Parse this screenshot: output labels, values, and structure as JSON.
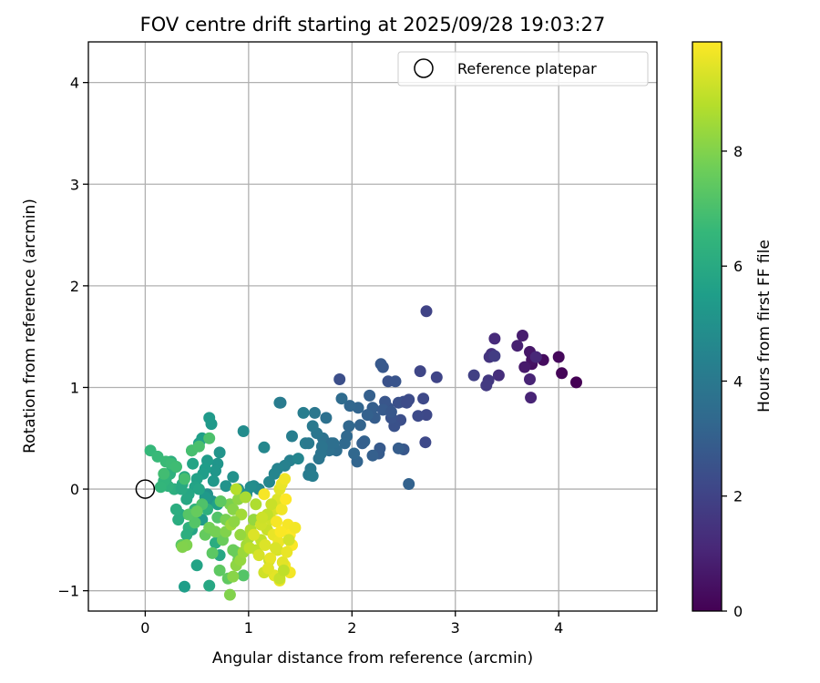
{
  "chart_data": {
    "type": "scatter",
    "title": "FOV centre drift starting at 2025/09/28 19:03:27",
    "xlabel": "Angular distance from reference (arcmin)",
    "ylabel": "Rotation from reference (arcmin)",
    "xlim": [
      -0.55,
      4.95
    ],
    "ylim": [
      -1.2,
      4.4
    ],
    "xticks": [
      0,
      1,
      2,
      3,
      4
    ],
    "yticks": [
      -1,
      0,
      1,
      2,
      3,
      4
    ],
    "grid": true,
    "legend": {
      "position": "top-right",
      "entries": [
        "Reference platepar"
      ]
    },
    "reference_point": {
      "x": 0,
      "y": 0
    },
    "colorbar": {
      "label": "Hours from first FF file",
      "range": [
        0,
        9.9
      ],
      "ticks": [
        0,
        2,
        4,
        6,
        8
      ],
      "colormap": "viridis",
      "colormap_stops": [
        "#440154",
        "#482878",
        "#3e4989",
        "#31688e",
        "#26828e",
        "#1f9e89",
        "#35b779",
        "#6ece58",
        "#b5de2b",
        "#fde725"
      ]
    },
    "series": [
      {
        "x": [
          4.17,
          4.03,
          4.0,
          3.85,
          3.74,
          3.74,
          3.72,
          3.67,
          3.65,
          3.6,
          3.72,
          3.78,
          3.38,
          3.42,
          3.35,
          3.33,
          3.32,
          3.3,
          3.38,
          3.18,
          3.73
        ],
        "y": [
          1.05,
          1.14,
          1.3,
          1.27,
          1.23,
          1.27,
          1.35,
          1.2,
          1.51,
          1.41,
          1.08,
          1.3,
          1.48,
          1.12,
          1.33,
          1.3,
          1.07,
          1.02,
          1.31,
          1.12,
          0.9
        ],
        "t": [
          0.0,
          0.1,
          0.2,
          0.3,
          0.4,
          0.5,
          0.6,
          0.7,
          0.8,
          0.9,
          1.0,
          1.1,
          1.2,
          1.3,
          1.4,
          1.5,
          1.6,
          1.7,
          1.8,
          1.9,
          1.0
        ]
      },
      {
        "x": [
          2.72,
          2.82,
          2.66,
          2.72,
          2.69,
          2.64,
          2.55,
          2.5,
          2.47,
          2.45,
          2.41,
          2.38,
          2.35,
          2.32,
          2.3,
          2.28,
          2.27,
          2.26,
          2.22,
          2.2,
          2.17,
          2.15,
          2.12,
          2.08,
          2.06,
          1.98,
          1.97,
          1.95,
          1.93,
          1.9,
          1.88,
          1.85,
          2.05,
          2.1,
          2.35,
          2.42,
          2.5,
          2.45,
          2.53,
          2.55,
          2.71,
          2.3,
          2.38,
          2.2,
          2.02
        ],
        "y": [
          1.75,
          1.1,
          1.16,
          0.73,
          0.89,
          0.72,
          0.88,
          0.86,
          0.68,
          0.85,
          0.62,
          0.7,
          0.8,
          0.86,
          1.2,
          1.23,
          0.4,
          0.35,
          0.7,
          0.8,
          0.92,
          0.73,
          0.47,
          0.63,
          0.8,
          0.82,
          0.62,
          0.52,
          0.45,
          0.89,
          1.08,
          0.38,
          0.27,
          0.45,
          1.06,
          1.06,
          0.39,
          0.4,
          0.85,
          0.05,
          0.46,
          0.78,
          0.76,
          0.33,
          0.35
        ],
        "t": [
          2.0,
          2.05,
          2.1,
          2.15,
          2.2,
          2.25,
          2.3,
          2.35,
          2.4,
          2.45,
          2.5,
          2.55,
          2.6,
          2.65,
          2.7,
          2.75,
          2.8,
          2.85,
          2.9,
          2.95,
          3.0,
          3.05,
          3.1,
          3.15,
          3.2,
          3.25,
          3.3,
          3.35,
          3.4,
          3.45,
          2.4,
          3.5,
          3.2,
          3.0,
          2.5,
          2.6,
          2.7,
          2.9,
          2.3,
          3.1,
          2.2,
          2.8,
          2.7,
          3.0,
          3.3
        ]
      },
      {
        "x": [
          1.82,
          1.78,
          1.75,
          1.72,
          1.7,
          1.68,
          1.66,
          1.64,
          1.62,
          1.6,
          1.58,
          1.55,
          1.53,
          1.42,
          1.4,
          1.35,
          1.3,
          1.28,
          1.25,
          1.2,
          1.15,
          1.1,
          1.05,
          1.31,
          1.62,
          1.58,
          1.8,
          1.71,
          1.48
        ],
        "y": [
          0.45,
          0.38,
          0.7,
          0.5,
          0.35,
          0.3,
          0.55,
          0.75,
          0.62,
          0.2,
          0.14,
          0.45,
          0.75,
          0.52,
          0.28,
          0.23,
          0.85,
          0.2,
          0.15,
          0.07,
          0.41,
          0.0,
          0.03,
          0.85,
          0.13,
          0.45,
          0.45,
          0.42,
          0.3
        ],
        "t": [
          3.6,
          3.65,
          3.7,
          3.75,
          3.8,
          3.85,
          3.9,
          3.95,
          4.0,
          4.05,
          4.1,
          4.15,
          4.2,
          4.25,
          4.3,
          4.35,
          4.4,
          4.45,
          4.5,
          4.55,
          4.6,
          4.65,
          4.7,
          4.1,
          4.2,
          4.0,
          3.6,
          3.8,
          4.5
        ]
      },
      {
        "x": [
          0.95,
          1.02,
          0.98,
          0.9,
          0.85,
          0.78,
          0.72,
          0.7,
          0.68,
          0.66,
          0.64,
          0.62,
          0.6,
          0.58,
          0.56,
          0.55,
          0.52,
          0.5,
          0.48,
          0.46,
          0.45,
          0.42,
          0.4,
          0.38,
          0.36,
          0.34,
          0.32,
          0.3,
          0.28,
          0.26,
          0.24,
          0.22,
          0.2,
          0.18,
          0.15,
          0.6,
          0.65,
          0.55,
          0.7,
          0.45,
          0.3,
          0.25,
          0.38,
          0.5,
          0.62,
          0.68,
          0.42,
          0.48,
          0.58,
          0.35,
          0.4,
          0.52,
          0.6,
          0.72
        ],
        "y": [
          0.57,
          0.02,
          -0.05,
          0.0,
          0.12,
          0.03,
          0.36,
          0.25,
          0.18,
          0.08,
          0.64,
          0.7,
          0.28,
          0.2,
          0.15,
          0.5,
          0.45,
          0.1,
          0.02,
          0.25,
          0.38,
          -0.05,
          -0.1,
          0.12,
          0.05,
          -0.25,
          -0.3,
          -0.2,
          0.0,
          0.2,
          0.15,
          0.03,
          0.1,
          0.08,
          0.02,
          -0.05,
          -0.12,
          -0.3,
          -0.15,
          -0.4,
          0.22,
          0.27,
          -0.96,
          -0.75,
          -0.95,
          -0.53,
          -0.38,
          -0.2,
          -0.08,
          0.0,
          -0.45,
          0.0,
          -0.2,
          -0.65
        ],
        "t": [
          4.8,
          4.85,
          4.9,
          4.95,
          5.0,
          5.05,
          5.1,
          5.15,
          5.2,
          5.25,
          5.3,
          5.35,
          5.4,
          5.45,
          5.5,
          5.55,
          5.6,
          5.65,
          5.7,
          5.75,
          5.8,
          5.85,
          5.9,
          5.95,
          6.0,
          6.05,
          6.1,
          6.15,
          6.2,
          6.25,
          6.3,
          6.35,
          6.4,
          6.45,
          6.5,
          5.0,
          5.2,
          5.4,
          5.6,
          5.8,
          6.0,
          6.2,
          5.5,
          5.7,
          5.9,
          6.1,
          6.3,
          6.4,
          5.3,
          6.0,
          6.2,
          5.8,
          6.3,
          5.9
        ]
      },
      {
        "x": [
          0.05,
          0.12,
          0.2,
          0.25,
          0.3,
          0.18,
          0.38,
          0.45,
          0.52,
          0.62,
          0.55,
          0.7,
          0.48,
          0.42,
          0.35,
          0.65,
          0.72,
          0.8,
          0.58,
          0.5,
          0.75,
          0.85,
          0.9,
          0.62,
          0.68,
          0.78,
          0.82,
          0.4,
          0.36,
          0.95,
          0.88,
          0.73
        ],
        "y": [
          0.38,
          0.32,
          0.27,
          0.25,
          0.22,
          0.15,
          0.1,
          0.38,
          0.42,
          0.5,
          -0.15,
          -0.28,
          -0.33,
          -0.25,
          -0.55,
          -0.63,
          -0.8,
          -0.88,
          -0.45,
          -0.22,
          -0.5,
          -0.6,
          -0.7,
          -0.38,
          -0.42,
          -0.3,
          -0.15,
          -0.55,
          -0.57,
          -0.85,
          -0.62,
          -0.12
        ],
        "t": [
          6.6,
          6.65,
          6.7,
          6.75,
          6.8,
          6.85,
          6.9,
          6.95,
          7.0,
          7.05,
          7.1,
          7.15,
          7.2,
          7.25,
          7.3,
          7.35,
          7.4,
          7.45,
          7.5,
          7.55,
          7.6,
          7.65,
          7.7,
          7.75,
          7.8,
          7.85,
          7.9,
          7.95,
          8.0,
          7.2,
          7.6,
          7.4
        ]
      },
      {
        "x": [
          0.82,
          0.85,
          0.88,
          0.92,
          0.95,
          0.98,
          1.0,
          1.02,
          0.85,
          0.9,
          1.05,
          0.78,
          0.83,
          0.93,
          0.97,
          1.07,
          0.88,
          1.01,
          0.92,
          0.86
        ],
        "y": [
          -1.04,
          -0.86,
          -0.75,
          -0.7,
          -0.62,
          -0.55,
          -0.48,
          -0.4,
          -0.2,
          -0.1,
          -0.3,
          -0.42,
          -0.35,
          -0.25,
          -0.08,
          -0.15,
          0.0,
          -0.58,
          -0.45,
          -0.32
        ],
        "t": [
          8.0,
          8.1,
          8.2,
          8.3,
          8.4,
          8.5,
          8.6,
          8.7,
          8.1,
          8.2,
          8.3,
          8.0,
          8.4,
          8.5,
          8.6,
          8.7,
          8.8,
          8.9,
          8.3,
          8.2
        ]
      },
      {
        "x": [
          1.08,
          1.12,
          1.18,
          1.22,
          1.25,
          1.28,
          1.3,
          1.32,
          1.35,
          1.38,
          1.4,
          1.42,
          1.45,
          1.2,
          1.15,
          1.1,
          1.05,
          1.25,
          1.3,
          1.35,
          1.18,
          1.22,
          1.28,
          1.33,
          1.37,
          1.12,
          1.16,
          1.24,
          1.27,
          1.32,
          1.36,
          1.4,
          1.15,
          1.21,
          1.29,
          1.31,
          1.19,
          1.26,
          1.39,
          1.13,
          1.3,
          1.34
        ],
        "y": [
          -0.6,
          -0.5,
          -0.4,
          -0.3,
          -0.2,
          -0.1,
          0.0,
          0.05,
          0.1,
          -0.35,
          -0.45,
          -0.55,
          -0.38,
          -0.7,
          -0.82,
          -0.65,
          -0.45,
          -0.85,
          -0.9,
          -0.75,
          -0.25,
          -0.15,
          -0.6,
          -0.72,
          -0.62,
          -0.35,
          -0.55,
          -0.45,
          -0.32,
          -0.2,
          -0.1,
          -0.82,
          -0.05,
          -0.68,
          -0.52,
          -0.42,
          -0.78,
          -0.58,
          -0.5,
          -0.28,
          -0.88,
          -0.8
        ],
        "t": [
          8.9,
          9.0,
          9.1,
          9.2,
          9.3,
          9.4,
          9.5,
          9.6,
          9.7,
          9.8,
          9.9,
          9.85,
          9.75,
          9.1,
          9.2,
          9.3,
          9.4,
          9.5,
          9.6,
          9.7,
          9.0,
          9.1,
          9.3,
          9.5,
          9.6,
          9.2,
          9.4,
          9.6,
          9.8,
          9.7,
          9.9,
          9.75,
          9.8,
          9.55,
          9.65,
          9.85,
          9.45,
          9.35,
          9.25,
          9.15,
          9.05,
          8.95
        ]
      }
    ]
  }
}
